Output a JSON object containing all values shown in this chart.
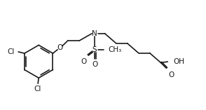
{
  "bg_color": "#ffffff",
  "line_color": "#1a1a1a",
  "line_width": 1.2,
  "font_size": 7.5,
  "fig_width": 2.94,
  "fig_height": 1.57,
  "dpi": 100,
  "xlim": [
    0,
    11
  ],
  "ylim": [
    0,
    5.5
  ]
}
